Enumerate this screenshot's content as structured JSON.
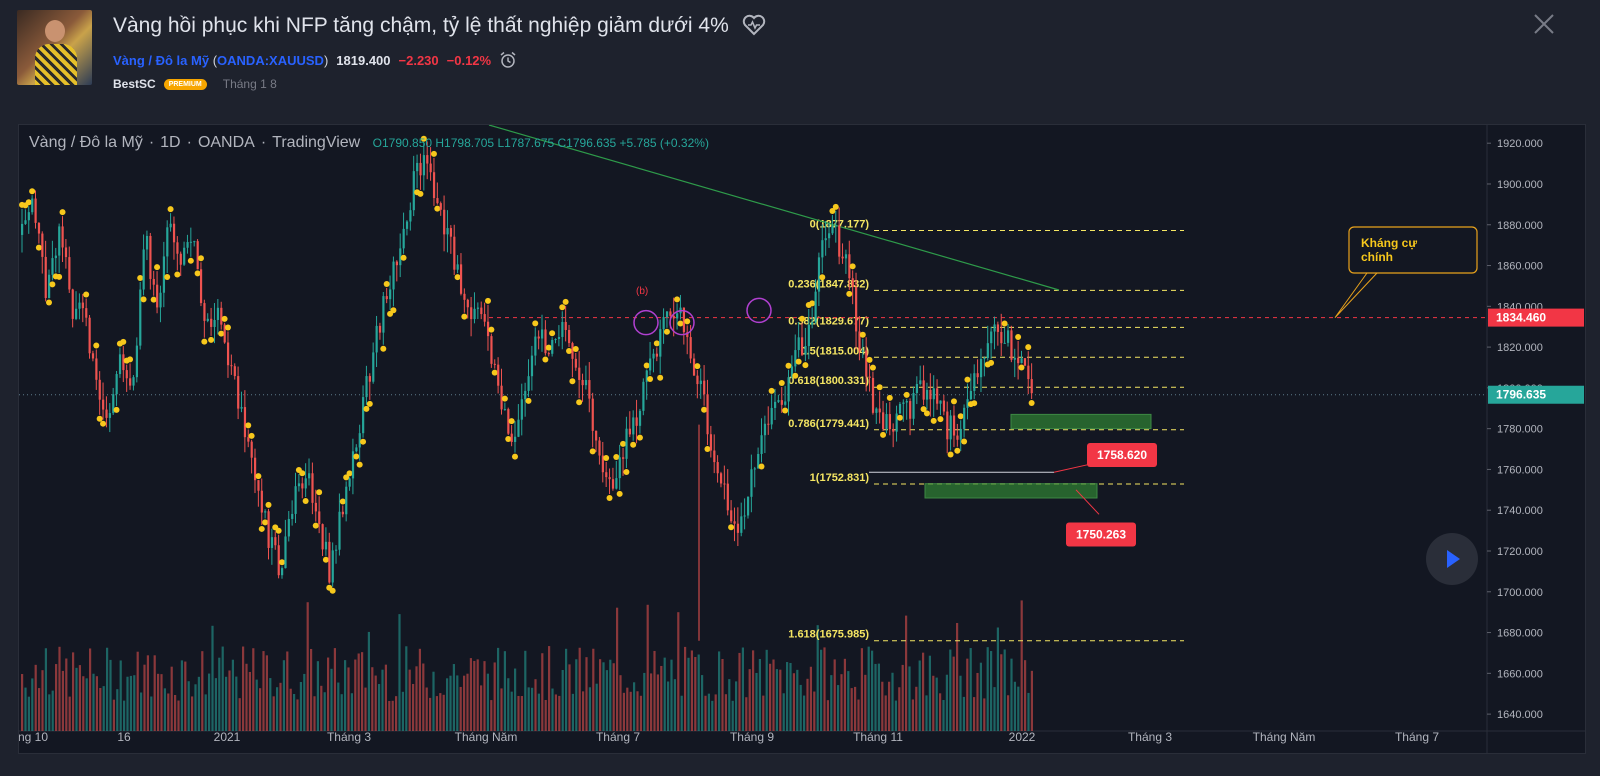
{
  "header": {
    "title": "Vàng hồi phục khi NFP tăng chậm, tỷ lệ thất nghiệp giảm dưới 4%",
    "symbol_name": "Vàng / Đô la Mỹ",
    "symbol_code": "OANDA:XAUUSD",
    "price": "1819.400",
    "change": "−2.230",
    "change_pct": "−0.12%",
    "author": "BestSC",
    "badge": "PREMIUM",
    "date": "Tháng 1 8"
  },
  "legend": {
    "symbol": "Vàng / Đô la Mỹ",
    "interval": "1D",
    "exchange": "OANDA",
    "source": "TradingView",
    "ohlc": "O1790.850 H1798.705 L1787.675 C1796.635 +5.785 (+0.32%)"
  },
  "chart_data": {
    "type": "candlestick",
    "y_axis": {
      "min": 1630,
      "max": 1925,
      "ticks": [
        "1920.000",
        "1900.000",
        "1880.000",
        "1860.000",
        "1840.000",
        "1820.000",
        "1800.000",
        "1780.000",
        "1760.000",
        "1740.000",
        "1720.000",
        "1700.000",
        "1680.000",
        "1660.000",
        "1640.000"
      ]
    },
    "x_ticks": [
      "ng 10",
      "16",
      "2021",
      "Tháng 3",
      "Tháng Năm",
      "Tháng 7",
      "Tháng 9",
      "Tháng 11",
      "2022",
      "Tháng 3",
      "Tháng Năm",
      "Tháng 7"
    ],
    "price_labels": [
      {
        "value": 1834.46,
        "text": "1834.460",
        "color": "#f23645"
      },
      {
        "value": 1796.635,
        "text": "1796.635",
        "color": "#26a69a"
      }
    ],
    "fibonacci": [
      {
        "label": "0(1877.177)",
        "value": 1877.177
      },
      {
        "label": "0.236(1847.832)",
        "value": 1847.832
      },
      {
        "label": "0.382(1829.677)",
        "value": 1829.677
      },
      {
        "label": "0.5(1815.004)",
        "value": 1815.004
      },
      {
        "label": "0.618(1800.331)",
        "value": 1800.331
      },
      {
        "label": "0.786(1779.441)",
        "value": 1779.441
      },
      {
        "label": "1(1752.831)",
        "value": 1752.831
      },
      {
        "label": "1.618(1675.985)",
        "value": 1675.985
      }
    ],
    "annotations": {
      "resistance_note": "Kháng cự chính",
      "label_1758": "1758.620",
      "label_1750": "1750.263",
      "wave_b": "(b)"
    },
    "series_path": [
      1875,
      1890,
      1845,
      1880,
      1840,
      1845,
      1800,
      1778,
      1820,
      1800,
      1873,
      1842,
      1880,
      1862,
      1868,
      1830,
      1840,
      1808,
      1782,
      1752,
      1728,
      1708,
      1742,
      1758,
      1740,
      1710,
      1740,
      1772,
      1800,
      1830,
      1855,
      1880,
      1905,
      1912,
      1882,
      1865,
      1845,
      1835,
      1822,
      1788,
      1768,
      1805,
      1830,
      1818,
      1832,
      1815,
      1798,
      1760,
      1745,
      1772,
      1788,
      1812,
      1830,
      1840,
      1825,
      1802,
      1773,
      1755,
      1725,
      1752,
      1772,
      1788,
      1798,
      1818,
      1832,
      1870,
      1878,
      1858,
      1825,
      1795,
      1783,
      1785,
      1790,
      1802,
      1795,
      1782,
      1778,
      1798,
      1812,
      1830,
      1825,
      1810,
      1797
    ],
    "colors": {
      "up": "#26a69a",
      "down": "#ef5350",
      "fib": "#f5e663",
      "marker": "#f7c81c",
      "trend": "#2e9b4a",
      "resistance": "#f23645",
      "zone": "#2e7d32"
    }
  }
}
